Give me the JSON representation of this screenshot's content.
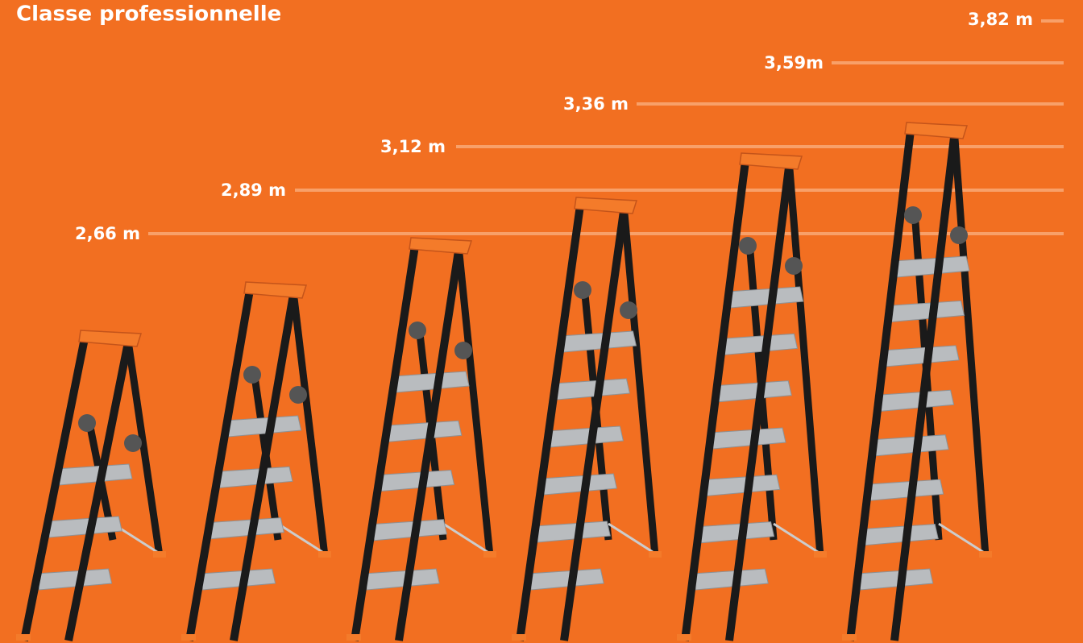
{
  "title": "Classe professionnelle",
  "heights": [
    "2,66 m",
    "2,89 m",
    "3,12 m",
    "3,36 m",
    "3,59m",
    "3,82 m"
  ]
}
